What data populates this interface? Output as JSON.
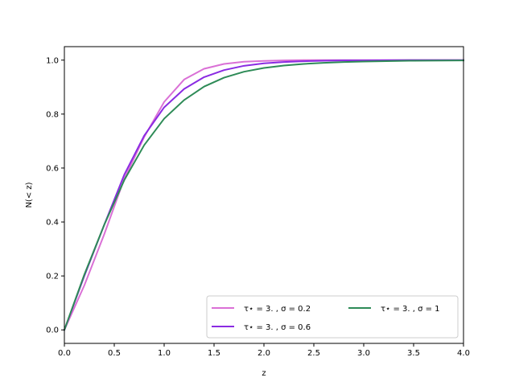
{
  "chart_data": {
    "type": "line",
    "xlabel": "z",
    "ylabel": "N(< z)",
    "xlim": [
      0.0,
      4.0
    ],
    "ylim": [
      -0.05,
      1.05
    ],
    "xticks": [
      0.0,
      0.5,
      1.0,
      1.5,
      2.0,
      2.5,
      3.0,
      3.5,
      4.0
    ],
    "xtick_labels": [
      "0.0",
      "0.5",
      "1.0",
      "1.5",
      "2.0",
      "2.5",
      "3.0",
      "3.5",
      "4.0"
    ],
    "yticks": [
      0.0,
      0.2,
      0.4,
      0.6,
      0.8,
      1.0
    ],
    "ytick_labels": [
      "0.0",
      "0.2",
      "0.4",
      "0.6",
      "0.8",
      "1.0"
    ],
    "grid": false,
    "legend_position": "lower-right",
    "legend_columns": 2,
    "series": [
      {
        "name": "τ⋆ = 3. , σ = 0.2",
        "color": "#da70d6",
        "x": [
          0.0,
          0.2,
          0.4,
          0.6,
          0.8,
          1.0,
          1.2,
          1.4,
          1.6,
          1.8,
          2.0,
          2.2,
          2.4,
          2.6,
          2.8,
          3.0,
          3.5,
          4.0
        ],
        "y": [
          0.0,
          0.165,
          0.355,
          0.56,
          0.715,
          0.845,
          0.928,
          0.968,
          0.986,
          0.994,
          0.997,
          0.999,
          1.0,
          1.0,
          1.0,
          1.0,
          1.0,
          1.0
        ]
      },
      {
        "name": "τ⋆ = 3. , σ = 0.6",
        "color": "#8a2be2",
        "x": [
          0.0,
          0.2,
          0.4,
          0.6,
          0.8,
          1.0,
          1.2,
          1.4,
          1.6,
          1.8,
          2.0,
          2.2,
          2.4,
          2.6,
          2.8,
          3.0,
          3.5,
          4.0
        ],
        "y": [
          0.0,
          0.2,
          0.39,
          0.575,
          0.72,
          0.825,
          0.893,
          0.937,
          0.963,
          0.979,
          0.988,
          0.993,
          0.996,
          0.998,
          0.999,
          0.999,
          1.0,
          1.0
        ]
      },
      {
        "name": "τ⋆ = 3. , σ = 1",
        "color": "#2e8b57",
        "x": [
          0.0,
          0.2,
          0.4,
          0.6,
          0.8,
          1.0,
          1.2,
          1.4,
          1.6,
          1.8,
          2.0,
          2.2,
          2.4,
          2.6,
          2.8,
          3.0,
          3.5,
          4.0
        ],
        "y": [
          0.0,
          0.205,
          0.39,
          0.555,
          0.685,
          0.783,
          0.852,
          0.902,
          0.935,
          0.957,
          0.971,
          0.98,
          0.986,
          0.99,
          0.993,
          0.995,
          0.998,
          0.999
        ]
      }
    ]
  }
}
